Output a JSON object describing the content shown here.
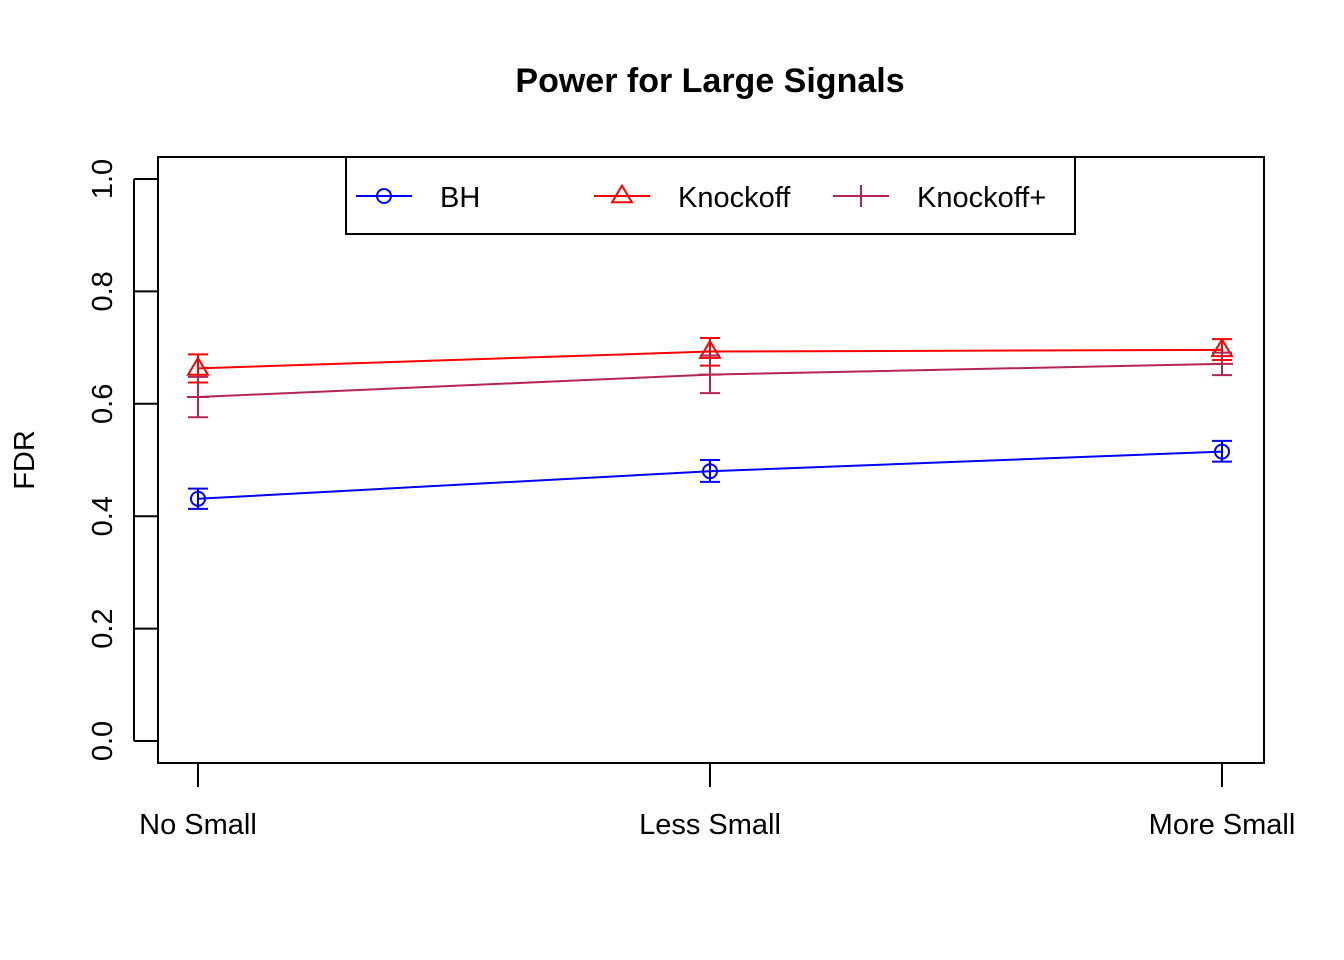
{
  "chart_data": {
    "type": "line",
    "title": "Power for Large Signals",
    "xlabel": "",
    "ylabel": "FDR",
    "categories": [
      "No Small",
      "Less Small",
      "More Small"
    ],
    "ylim": [
      0,
      1
    ],
    "yticks": [
      "0.0",
      "0.2",
      "0.4",
      "0.6",
      "0.8",
      "1.0"
    ],
    "grid": false,
    "legend_position": "top-center",
    "series": [
      {
        "name": "BH",
        "color": "#0000ff",
        "marker": "circle",
        "values": [
          0.431,
          0.48,
          0.515
        ],
        "error_low": [
          0.413,
          0.461,
          0.497
        ],
        "error_high": [
          0.449,
          0.5,
          0.534
        ]
      },
      {
        "name": "Knockoff",
        "color": "#ff0000",
        "marker": "triangle",
        "values": [
          0.663,
          0.693,
          0.696
        ],
        "error_low": [
          0.638,
          0.668,
          0.678
        ],
        "error_high": [
          0.688,
          0.717,
          0.715
        ]
      },
      {
        "name": "Knockoff+",
        "color": "#b5254f",
        "marker": "plus",
        "values": [
          0.612,
          0.652,
          0.671
        ],
        "error_low": [
          0.576,
          0.619,
          0.651
        ],
        "error_high": [
          0.648,
          0.686,
          0.691
        ]
      }
    ]
  }
}
